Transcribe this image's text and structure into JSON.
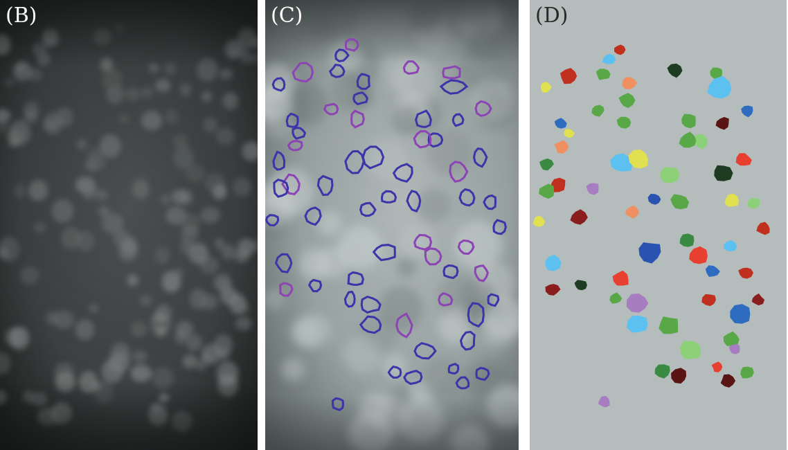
{
  "panels": [
    {
      "id": "B",
      "label": "(B)",
      "kind": "raw-fluorescence-image"
    },
    {
      "id": "C",
      "label": "(C)",
      "kind": "contour-overlay-image"
    },
    {
      "id": "D",
      "label": "(D)",
      "kind": "segmentation-label-map"
    }
  ],
  "colors": {
    "page_background": "#ffffff",
    "panel_d_background": "#b4bcbc",
    "contour_blue": "#3c34a8",
    "contour_purple": "#8c44b4",
    "label_light": "#ffffff",
    "label_dark": "#2a2a2a",
    "label_map_palette": [
      "#c0301e",
      "#2e6cc0",
      "#5cc0f0",
      "#e0e050",
      "#58a848",
      "#8cd078",
      "#f09060",
      "#a87cc0",
      "#1e3c22",
      "#5a1414",
      "#3a8a44",
      "#2a52b0",
      "#e84030",
      "#8a1e1e"
    ]
  }
}
